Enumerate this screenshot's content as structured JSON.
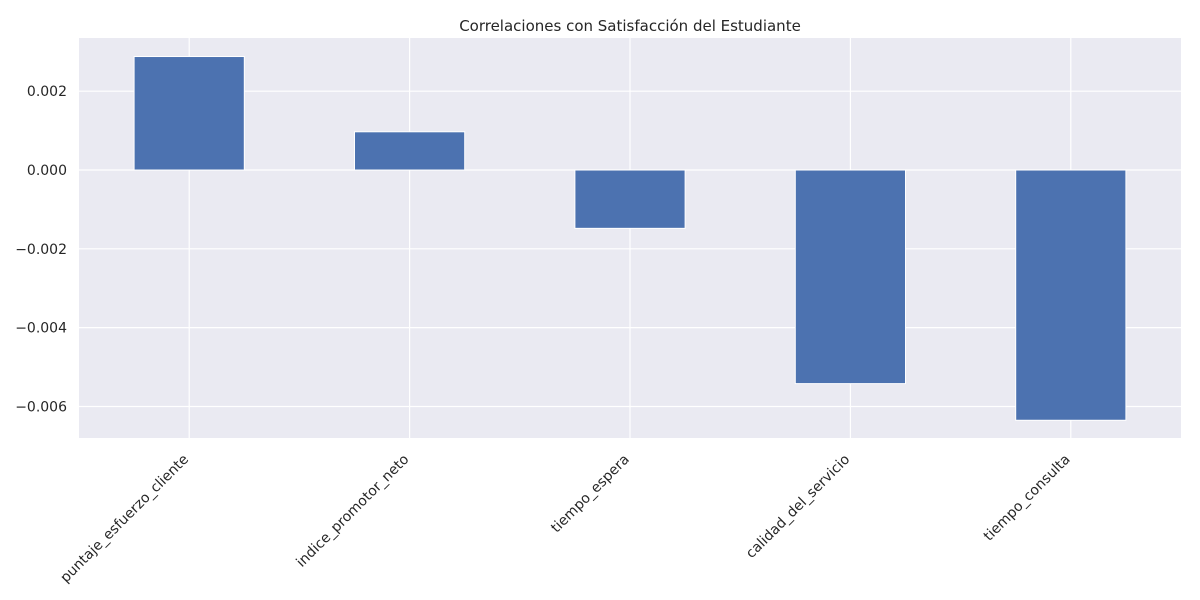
{
  "chart_data": {
    "type": "bar",
    "title": "Correlaciones con Satisfacción del Estudiante",
    "xlabel": "",
    "ylabel": "",
    "categories": [
      "puntaje_esfuerzo_cliente",
      "indice_promotor_neto",
      "tiempo_espera",
      "calidad_del_servicio",
      "tiempo_consulta"
    ],
    "values": [
      0.00288,
      0.00097,
      -0.00148,
      -0.00542,
      -0.00635
    ],
    "ylim": [
      -0.0068,
      0.00335
    ],
    "yticks": [
      0.002,
      0.0,
      -0.002,
      -0.004,
      -0.006
    ],
    "ytick_labels": [
      "0.002",
      "0.000",
      "−0.002",
      "−0.004",
      "−0.006"
    ],
    "grid": true,
    "legend": "none",
    "colors": {
      "bar": "#4c72b0",
      "plot_background": "#eaeaf2",
      "grid": "#ffffff",
      "text": "#262626"
    }
  }
}
